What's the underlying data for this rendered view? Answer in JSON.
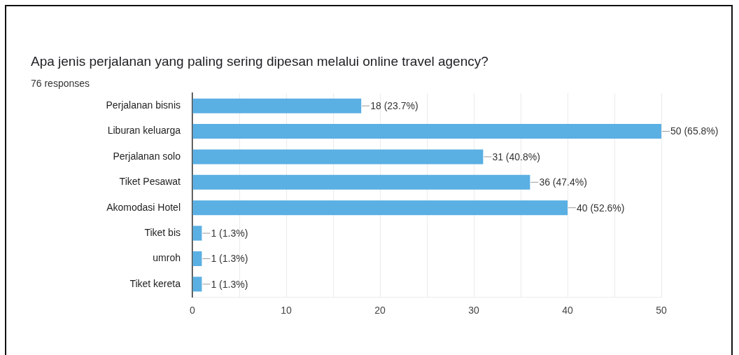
{
  "chart_data": {
    "type": "bar",
    "orientation": "horizontal",
    "title": "Apa jenis perjalanan yang paling sering dipesan melalui online travel agency?",
    "subtitle": "76 responses",
    "categories": [
      "Perjalanan bisnis",
      "Liburan keluarga",
      "Perjalanan solo",
      "Tiket Pesawat",
      "Akomodasi Hotel",
      "Tiket bis",
      "umroh",
      "Tiket kereta"
    ],
    "values": [
      18,
      50,
      31,
      36,
      40,
      1,
      1,
      1
    ],
    "color": "#5aafe3",
    "value_labels": [
      "18 (23.7%)",
      "50 (65.8%)",
      "31 (40.8%)",
      "36 (47.4%)",
      "40 (52.6%)",
      "1 (1.3%)",
      "1 (1.3%)",
      "1 (1.3%)"
    ],
    "xlim": [
      0,
      50
    ],
    "xticks": [
      0,
      {
        "value": 5,
        "label": null
      },
      10,
      {
        "value": 15,
        "label": null
      },
      20,
      {
        "value": 25,
        "label": null
      },
      30,
      {
        "value": 35,
        "label": null
      },
      40,
      {
        "value": 45,
        "label": null
      },
      50
    ],
    "grid": "x"
  }
}
